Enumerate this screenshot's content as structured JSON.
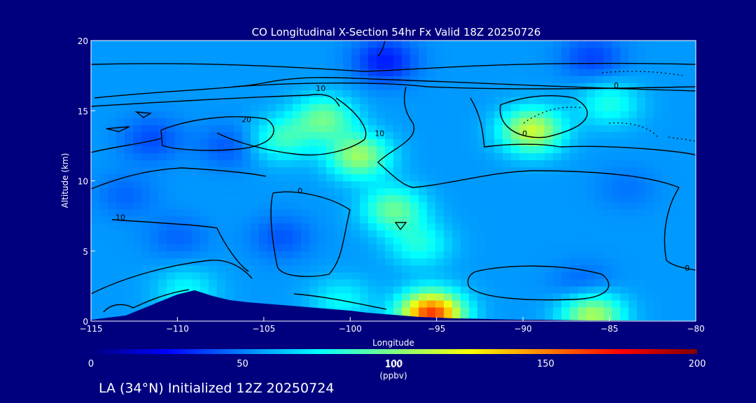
{
  "chart_data": {
    "type": "heatmap",
    "title": "CO Longitudinal X-Section 54hr  Fx Valid 18Z 20250726",
    "xlabel": "Longitude",
    "ylabel": "Altitude (km)",
    "xlim": [
      -115,
      -80
    ],
    "ylim": [
      0,
      20
    ],
    "x_ticks": [
      "−115",
      "−110",
      "−105",
      "−100",
      "−95",
      "−90",
      "−85",
      "−80"
    ],
    "y_ticks": [
      "0",
      "5",
      "10",
      "15",
      "20"
    ],
    "colorbar": {
      "ticks": [
        "0",
        "50",
        "100",
        "150",
        "200"
      ],
      "range": [
        0,
        200
      ],
      "label": "100",
      "unit": "(ppbv)",
      "colors": [
        "#00007f",
        "#0000ff",
        "#0080ff",
        "#00ffff",
        "#80ff80",
        "#ffff00",
        "#ff8000",
        "#ff0000",
        "#7f0000"
      ]
    },
    "footer": "LA (34°N) Initialized 12Z 20250724",
    "background_field_ppbv": 55,
    "co_maxima": [
      {
        "lon": -95.3,
        "alt": 0.5,
        "ppbv": 165
      },
      {
        "lon": -99.5,
        "alt": 11.8,
        "ppbv": 105
      },
      {
        "lon": -101.5,
        "alt": 14.5,
        "ppbv": 95
      },
      {
        "lon": -97.5,
        "alt": 8.0,
        "ppbv": 95
      },
      {
        "lon": -89.5,
        "alt": 13.6,
        "ppbv": 115
      },
      {
        "lon": -104.0,
        "alt": 13.0,
        "ppbv": 85
      },
      {
        "lon": -86.0,
        "alt": 0.5,
        "ppbv": 110
      },
      {
        "lon": -109.5,
        "alt": 2.2,
        "ppbv": 75
      },
      {
        "lon": -96.0,
        "alt": 5.5,
        "ppbv": 80
      },
      {
        "lon": -85.0,
        "alt": 15.5,
        "ppbv": 80
      },
      {
        "lon": -100.5,
        "alt": 1.5,
        "ppbv": 75
      }
    ],
    "co_minima": [
      {
        "lon": -98.0,
        "alt": 18.6,
        "ppbv": 30
      },
      {
        "lon": -86.0,
        "alt": 18.8,
        "ppbv": 38
      },
      {
        "lon": -111.5,
        "alt": 13.0,
        "ppbv": 40
      },
      {
        "lon": -107.0,
        "alt": 12.5,
        "ppbv": 42
      },
      {
        "lon": -104.0,
        "alt": 6.0,
        "ppbv": 42
      },
      {
        "lon": -86.5,
        "alt": 2.5,
        "ppbv": 42
      },
      {
        "lon": -113.0,
        "alt": 9.0,
        "ppbv": 45
      },
      {
        "lon": -110.0,
        "alt": 6.0,
        "ppbv": 45
      },
      {
        "lon": -84.0,
        "alt": 9.5,
        "ppbv": 48
      }
    ],
    "contour_labels": [
      {
        "text": "10",
        "lon": -101.7,
        "alt": 16.4
      },
      {
        "text": "0",
        "lon": -84.6,
        "alt": 16.6
      },
      {
        "text": "20",
        "lon": -106.0,
        "alt": 14.2
      },
      {
        "text": "10",
        "lon": -98.3,
        "alt": 13.2
      },
      {
        "text": "0",
        "lon": -89.9,
        "alt": 13.2
      },
      {
        "text": "0",
        "lon": -102.9,
        "alt": 9.1
      },
      {
        "text": "10",
        "lon": -113.3,
        "alt": 7.2
      },
      {
        "text": "0",
        "lon": -80.5,
        "alt": 3.6
      }
    ],
    "terrain": {
      "lon": [
        -115,
        -114,
        -113,
        -112,
        -111,
        -110,
        -109,
        -108,
        -107,
        -106,
        -105,
        -104,
        -103,
        -102,
        -101,
        -100,
        -99,
        -98,
        -97,
        -96,
        -95,
        -94,
        -93,
        -92,
        -91,
        -90,
        -89,
        -88,
        -87,
        -86,
        -85,
        -84,
        -83,
        -82,
        -81,
        -80
      ],
      "alt": [
        0.1,
        0.25,
        0.4,
        0.9,
        1.4,
        1.9,
        2.2,
        1.8,
        1.5,
        1.35,
        1.25,
        1.15,
        1.05,
        0.95,
        0.85,
        0.75,
        0.6,
        0.5,
        0.4,
        0.3,
        0.25,
        0.2,
        0.18,
        0.15,
        0.12,
        0.1,
        0.1,
        0.08,
        0.06,
        0.05,
        0.05,
        0.05,
        0.04,
        0.04,
        0.03,
        0.03
      ]
    }
  }
}
